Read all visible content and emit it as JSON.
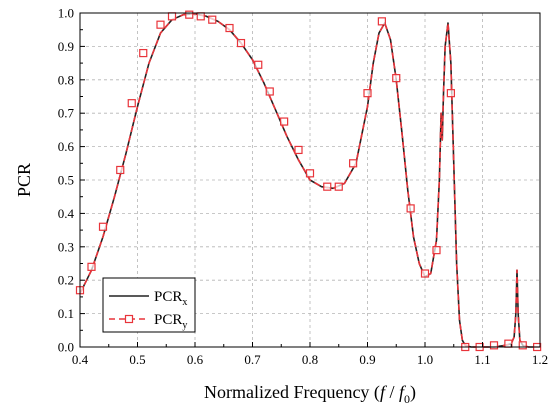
{
  "chart_data": {
    "type": "line",
    "xlabel": {
      "main": "Normalized Frequency (",
      "var1": "f",
      "slash": " / ",
      "var2": "f",
      "sub": "0",
      "close": ")"
    },
    "ylabel": "PCR",
    "xlim": [
      0.4,
      1.2
    ],
    "ylim": [
      0.0,
      1.0
    ],
    "xticks": [
      "0.4",
      "0.5",
      "0.6",
      "0.7",
      "0.8",
      "0.9",
      "1.0",
      "1.1",
      "1.2"
    ],
    "yticks": [
      "0.0",
      "0.1",
      "0.2",
      "0.3",
      "0.4",
      "0.5",
      "0.6",
      "0.7",
      "0.8",
      "0.9",
      "1.0"
    ],
    "grid": true,
    "legend": {
      "placement": "bottom-left"
    },
    "series": [
      {
        "name": "PCR",
        "name_sub": "x",
        "color": "#222222",
        "style": "solid",
        "x": [
          0.4,
          0.42,
          0.44,
          0.46,
          0.48,
          0.5,
          0.52,
          0.54,
          0.56,
          0.58,
          0.6,
          0.62,
          0.64,
          0.66,
          0.68,
          0.7,
          0.72,
          0.74,
          0.76,
          0.78,
          0.8,
          0.82,
          0.84,
          0.86,
          0.88,
          0.9,
          0.91,
          0.92,
          0.93,
          0.94,
          0.95,
          0.96,
          0.97,
          0.98,
          0.99,
          1.0,
          1.01,
          1.02,
          1.025,
          1.028,
          1.03,
          1.032,
          1.035,
          1.04,
          1.045,
          1.05,
          1.055,
          1.06,
          1.065,
          1.07,
          1.08,
          1.1,
          1.12,
          1.14,
          1.15,
          1.155,
          1.158,
          1.16,
          1.162,
          1.165,
          1.17,
          1.18,
          1.2
        ],
        "y": [
          0.16,
          0.23,
          0.33,
          0.45,
          0.58,
          0.72,
          0.85,
          0.94,
          0.98,
          0.995,
          0.998,
          0.99,
          0.975,
          0.95,
          0.91,
          0.86,
          0.79,
          0.71,
          0.63,
          0.56,
          0.5,
          0.48,
          0.475,
          0.49,
          0.55,
          0.72,
          0.85,
          0.94,
          0.97,
          0.92,
          0.8,
          0.64,
          0.47,
          0.33,
          0.25,
          0.21,
          0.22,
          0.32,
          0.5,
          0.7,
          0.62,
          0.75,
          0.9,
          0.97,
          0.85,
          0.55,
          0.25,
          0.08,
          0.02,
          0.005,
          0.0,
          0.0,
          0.0,
          0.005,
          0.01,
          0.03,
          0.1,
          0.23,
          0.1,
          0.02,
          0.005,
          0.0,
          0.0
        ]
      },
      {
        "name": "PCR",
        "name_sub": "y",
        "color": "#e8343a",
        "style": "dashed",
        "marker": "square",
        "x": [
          0.4,
          0.42,
          0.44,
          0.46,
          0.48,
          0.5,
          0.52,
          0.54,
          0.56,
          0.58,
          0.6,
          0.62,
          0.64,
          0.66,
          0.68,
          0.7,
          0.72,
          0.74,
          0.76,
          0.78,
          0.8,
          0.82,
          0.84,
          0.86,
          0.88,
          0.9,
          0.91,
          0.92,
          0.93,
          0.94,
          0.95,
          0.96,
          0.97,
          0.98,
          0.99,
          1.0,
          1.01,
          1.02,
          1.025,
          1.028,
          1.03,
          1.032,
          1.035,
          1.04,
          1.045,
          1.05,
          1.055,
          1.06,
          1.065,
          1.07,
          1.08,
          1.1,
          1.12,
          1.14,
          1.15,
          1.155,
          1.158,
          1.16,
          1.162,
          1.165,
          1.17,
          1.18,
          1.2
        ],
        "y": [
          0.16,
          0.23,
          0.33,
          0.45,
          0.58,
          0.72,
          0.85,
          0.94,
          0.98,
          0.995,
          0.998,
          0.99,
          0.975,
          0.95,
          0.91,
          0.86,
          0.79,
          0.71,
          0.63,
          0.56,
          0.5,
          0.48,
          0.475,
          0.49,
          0.55,
          0.72,
          0.85,
          0.94,
          0.97,
          0.92,
          0.8,
          0.64,
          0.47,
          0.33,
          0.25,
          0.21,
          0.22,
          0.32,
          0.5,
          0.7,
          0.62,
          0.75,
          0.9,
          0.97,
          0.85,
          0.55,
          0.25,
          0.08,
          0.02,
          0.005,
          0.0,
          0.0,
          0.0,
          0.005,
          0.01,
          0.03,
          0.1,
          0.23,
          0.1,
          0.02,
          0.005,
          0.0,
          0.0
        ],
        "markers": {
          "x": [
            0.4,
            0.42,
            0.44,
            0.47,
            0.49,
            0.51,
            0.54,
            0.56,
            0.59,
            0.61,
            0.63,
            0.66,
            0.68,
            0.71,
            0.73,
            0.755,
            0.78,
            0.8,
            0.83,
            0.85,
            0.875,
            0.9,
            0.925,
            0.95,
            0.975,
            1.0,
            1.02,
            1.045,
            1.07,
            1.095,
            1.12,
            1.145,
            1.17,
            1.195
          ],
          "y": [
            0.17,
            0.24,
            0.36,
            0.53,
            0.73,
            0.88,
            0.965,
            0.99,
            0.995,
            0.99,
            0.98,
            0.955,
            0.91,
            0.845,
            0.765,
            0.675,
            0.59,
            0.52,
            0.48,
            0.48,
            0.55,
            0.76,
            0.975,
            0.805,
            0.415,
            0.22,
            0.29,
            0.76,
            0.0,
            0.0,
            0.005,
            0.01,
            0.005,
            0.0
          ]
        }
      }
    ]
  }
}
